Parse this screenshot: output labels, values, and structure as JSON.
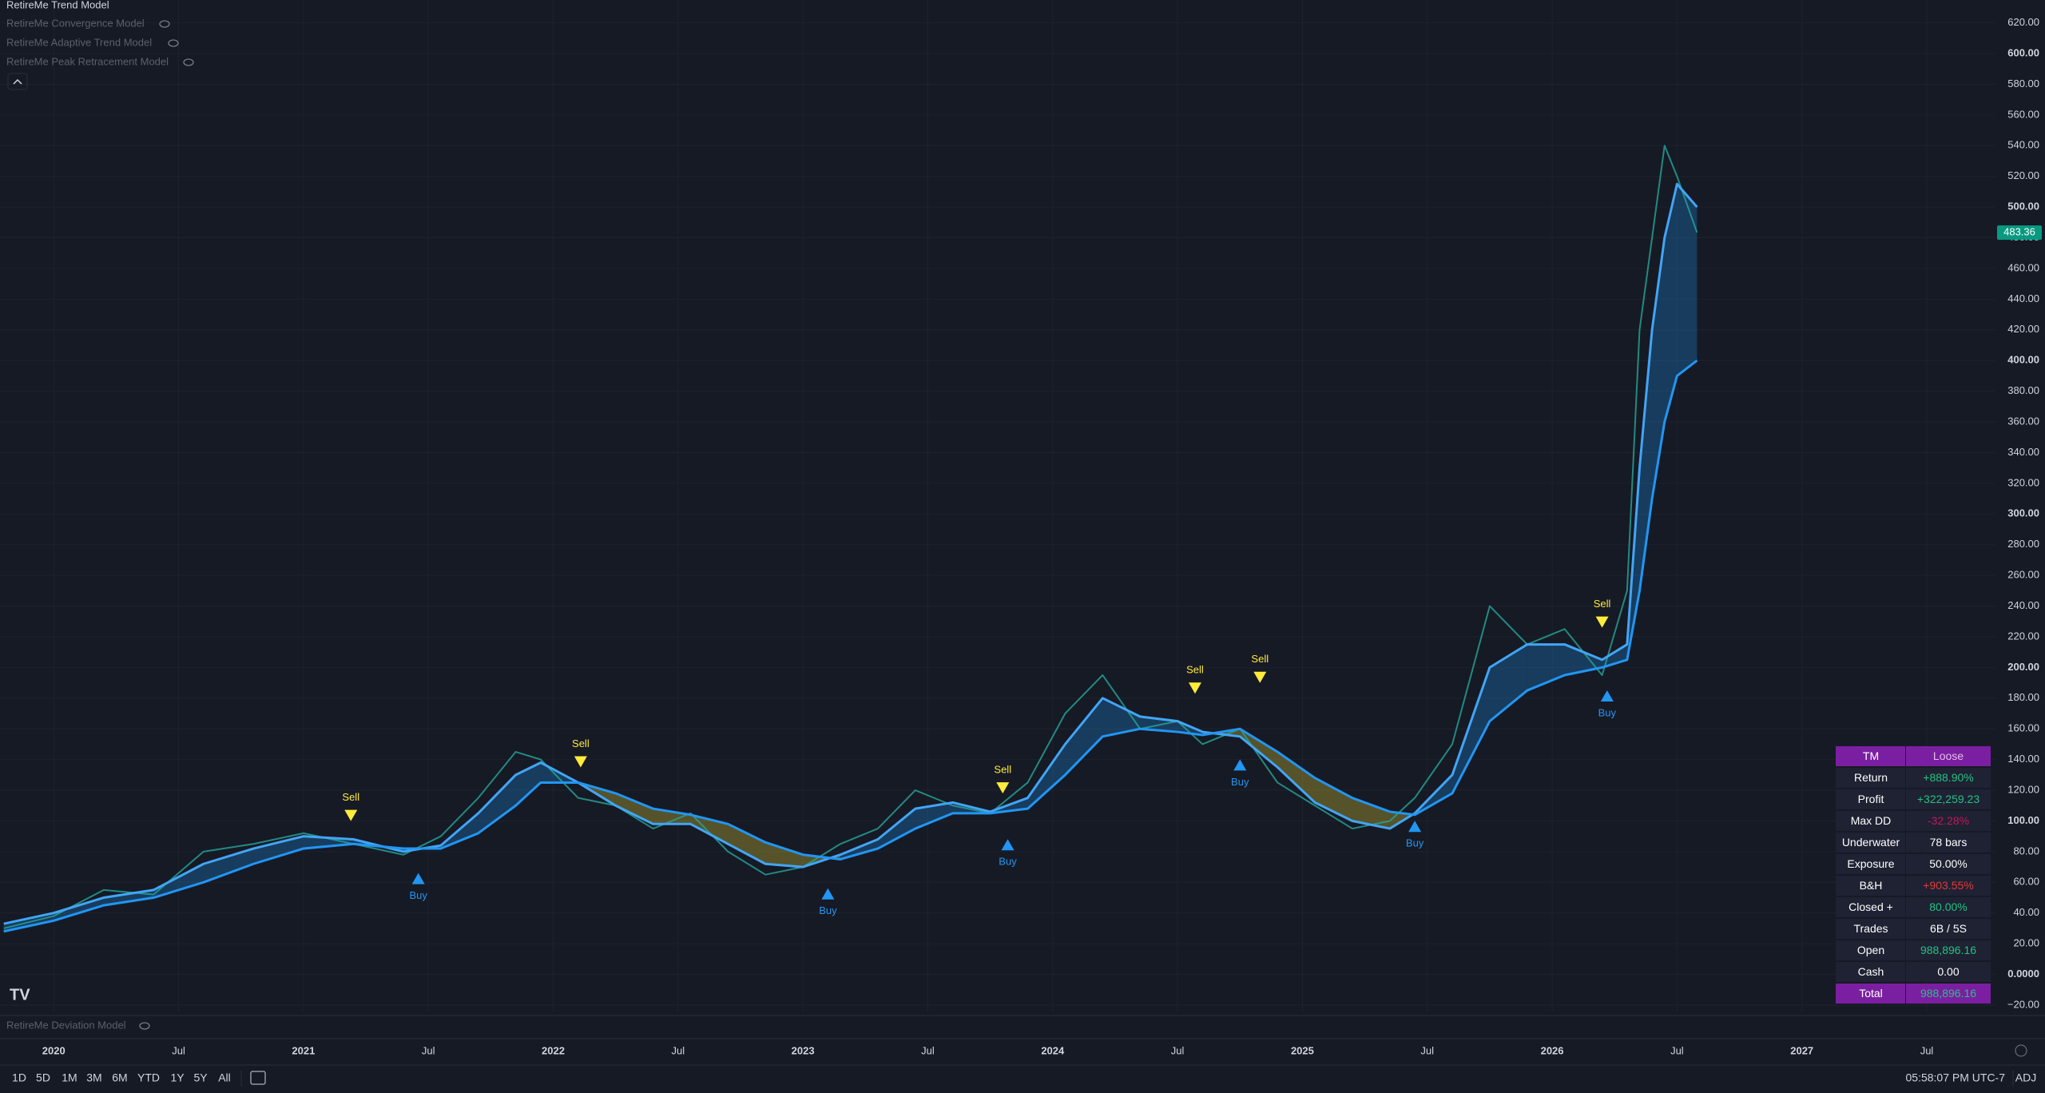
{
  "chart_data": {
    "type": "line",
    "indicators": [
      "RetireMe Trend Model",
      "RetireMe Convergence Model",
      "RetireMe Adaptive Trend Model",
      "RetireMe Peak Retracement Model"
    ],
    "lower_indicator": "RetireMe Deviation Model",
    "x": [
      2019.8,
      2020.0,
      2020.2,
      2020.4,
      2020.6,
      2020.8,
      2021.0,
      2021.2,
      2021.4,
      2021.55,
      2021.7,
      2021.85,
      2021.95,
      2022.1,
      2022.25,
      2022.4,
      2022.55,
      2022.7,
      2022.85,
      2023.0,
      2023.15,
      2023.3,
      2023.45,
      2023.6,
      2023.75,
      2023.9,
      2024.05,
      2024.2,
      2024.35,
      2024.5,
      2024.6,
      2024.75,
      2024.9,
      2025.05,
      2025.2,
      2025.35,
      2025.45,
      2025.6,
      2025.75,
      2025.9,
      2026.05,
      2026.2,
      2026.3,
      2026.35,
      2026.4,
      2026.45,
      2026.5,
      2026.58
    ],
    "series": [
      {
        "role": "price",
        "color": "#26a69a",
        "values": [
          30,
          38,
          55,
          52,
          80,
          85,
          92,
          85,
          78,
          90,
          115,
          145,
          140,
          115,
          110,
          95,
          105,
          80,
          65,
          70,
          85,
          95,
          120,
          110,
          105,
          125,
          170,
          195,
          160,
          165,
          150,
          160,
          125,
          110,
          95,
          100,
          115,
          150,
          240,
          215,
          225,
          195,
          250,
          420,
          480,
          540,
          520,
          483.36
        ]
      },
      {
        "role": "fast",
        "color": "#42a5f5",
        "values": [
          33,
          40,
          50,
          55,
          72,
          82,
          90,
          88,
          80,
          84,
          105,
          130,
          138,
          125,
          110,
          98,
          98,
          85,
          72,
          70,
          78,
          88,
          108,
          112,
          106,
          115,
          150,
          180,
          168,
          165,
          158,
          155,
          135,
          112,
          100,
          95,
          105,
          130,
          200,
          215,
          215,
          205,
          215,
          330,
          420,
          480,
          515,
          500
        ]
      },
      {
        "role": "slow",
        "color": "#2196f3",
        "values": [
          28,
          35,
          45,
          50,
          60,
          72,
          82,
          85,
          82,
          82,
          92,
          110,
          125,
          125,
          118,
          108,
          104,
          98,
          86,
          78,
          75,
          82,
          95,
          105,
          105,
          108,
          130,
          155,
          160,
          158,
          156,
          160,
          145,
          128,
          115,
          106,
          104,
          118,
          165,
          185,
          195,
          200,
          205,
          250,
          310,
          360,
          390,
          400
        ]
      }
    ],
    "signals": [
      {
        "label": "Sell",
        "x": 2021.19,
        "y": 90
      },
      {
        "label": "Buy",
        "x": 2021.46,
        "y": 76
      },
      {
        "label": "Sell",
        "x": 2022.11,
        "y": 125
      },
      {
        "label": "Buy",
        "x": 2023.1,
        "y": 66
      },
      {
        "label": "Sell",
        "x": 2023.8,
        "y": 108
      },
      {
        "label": "Buy",
        "x": 2023.82,
        "y": 98
      },
      {
        "label": "Sell",
        "x": 2024.57,
        "y": 173
      },
      {
        "label": "Buy",
        "x": 2024.75,
        "y": 150
      },
      {
        "label": "Sell",
        "x": 2024.83,
        "y": 180
      },
      {
        "label": "Buy",
        "x": 2025.45,
        "y": 110
      },
      {
        "label": "Sell",
        "x": 2026.2,
        "y": 216
      },
      {
        "label": "Buy",
        "x": 2026.22,
        "y": 195
      }
    ],
    "signal_colors": {
      "Sell": "#ffeb3b",
      "Buy": "#2196f3"
    },
    "last_price": {
      "value": 483.36,
      "label": "483.36"
    },
    "xlim": [
      2019.785,
      2027.775
    ],
    "xticks": [
      {
        "value": 2020,
        "label": "2020"
      },
      {
        "value": 2020.5,
        "label": "Jul"
      },
      {
        "value": 2021,
        "label": "2021"
      },
      {
        "value": 2021.5,
        "label": "Jul"
      },
      {
        "value": 2022,
        "label": "2022"
      },
      {
        "value": 2022.5,
        "label": "Jul"
      },
      {
        "value": 2023,
        "label": "2023"
      },
      {
        "value": 2023.5,
        "label": "Jul"
      },
      {
        "value": 2024,
        "label": "2024"
      },
      {
        "value": 2024.5,
        "label": "Jul"
      },
      {
        "value": 2025,
        "label": "2025"
      },
      {
        "value": 2025.5,
        "label": "Jul"
      },
      {
        "value": 2026,
        "label": "2026"
      },
      {
        "value": 2026.5,
        "label": "Jul"
      },
      {
        "value": 2027,
        "label": "2027"
      },
      {
        "value": 2027.5,
        "label": "Jul"
      }
    ],
    "ylim": [
      -24.7,
      634.9
    ],
    "yticks": [
      {
        "value": -20,
        "label": "−20.00"
      },
      {
        "value": 0,
        "label": "0.0000"
      },
      {
        "value": 20,
        "label": "20.00"
      },
      {
        "value": 40,
        "label": "40.00"
      },
      {
        "value": 60,
        "label": "60.00"
      },
      {
        "value": 80,
        "label": "80.00"
      },
      {
        "value": 100,
        "label": "100.00"
      },
      {
        "value": 120,
        "label": "120.00"
      },
      {
        "value": 140,
        "label": "140.00"
      },
      {
        "value": 160,
        "label": "160.00"
      },
      {
        "value": 180,
        "label": "180.00"
      },
      {
        "value": 200,
        "label": "200.00"
      },
      {
        "value": 220,
        "label": "220.00"
      },
      {
        "value": 240,
        "label": "240.00"
      },
      {
        "value": 260,
        "label": "260.00"
      },
      {
        "value": 280,
        "label": "280.00"
      },
      {
        "value": 300,
        "label": "300.00"
      },
      {
        "value": 320,
        "label": "320.00"
      },
      {
        "value": 340,
        "label": "340.00"
      },
      {
        "value": 360,
        "label": "360.00"
      },
      {
        "value": 380,
        "label": "380.00"
      },
      {
        "value": 400,
        "label": "400.00"
      },
      {
        "value": 420,
        "label": "420.00"
      },
      {
        "value": 440,
        "label": "440.00"
      },
      {
        "value": 460,
        "label": "460.00"
      },
      {
        "value": 480,
        "label": "480.00"
      },
      {
        "value": 500,
        "label": "500.00"
      },
      {
        "value": 520,
        "label": "520.00"
      },
      {
        "value": 540,
        "label": "540.00"
      },
      {
        "value": 560,
        "label": "560.00"
      },
      {
        "value": 580,
        "label": "580.00"
      },
      {
        "value": 600,
        "label": "600.00"
      },
      {
        "value": 620,
        "label": "620.00"
      }
    ],
    "grid": true,
    "table": {
      "header": [
        "TM",
        "Loose"
      ],
      "rows": [
        {
          "label": "Return",
          "value": "+888.90%",
          "color": "#26c281"
        },
        {
          "label": "Profit",
          "value": "+322,259.23",
          "color": "#26c281"
        },
        {
          "label": "Max DD",
          "value": "-32.28%",
          "color": "#c2185b"
        },
        {
          "label": "Underwater",
          "value": "78 bars",
          "color": "#ffffff"
        },
        {
          "label": "Exposure",
          "value": "50.00%",
          "color": "#ffffff"
        },
        {
          "label": "B&H",
          "value": "+903.55%",
          "color": "#e53935"
        },
        {
          "label": "Closed +",
          "value": "80.00%",
          "color": "#26c281"
        },
        {
          "label": "Trades",
          "value": "6B / 5S",
          "color": "#ffffff"
        },
        {
          "label": "Open",
          "value": "988,896.16",
          "color": "#26c281"
        },
        {
          "label": "Cash",
          "value": "0.00",
          "color": "#ffffff"
        }
      ],
      "footer": {
        "label": "Total",
        "value": "988,896.16"
      }
    },
    "ranges": [
      "1D",
      "5D",
      "1M",
      "3M",
      "6M",
      "YTD",
      "1Y",
      "5Y",
      "All"
    ],
    "clock": "05:58:07 PM UTC-7",
    "adjust": "ADJ"
  }
}
